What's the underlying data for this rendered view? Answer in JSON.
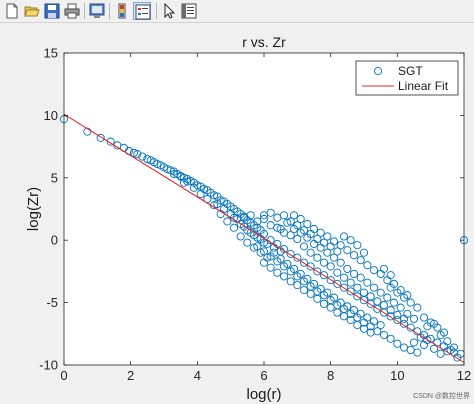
{
  "toolbar": {
    "items": [
      {
        "name": "new-figure-icon"
      },
      {
        "name": "open-file-icon"
      },
      {
        "name": "save-icon"
      },
      {
        "name": "print-icon"
      },
      {
        "name": "print-preview-icon"
      },
      {
        "name": "insert-colorbar-icon"
      },
      {
        "name": "insert-legend-icon"
      },
      {
        "name": "edit-plot-icon"
      },
      {
        "name": "property-editor-icon"
      }
    ]
  },
  "watermark": "CSDN @数控世界",
  "colors": {
    "marker": "#0072bd",
    "fit": "#e8201e",
    "axes": "#262626"
  },
  "chart_data": {
    "type": "scatter",
    "title": "r vs. Zr",
    "xlabel": "log(r)",
    "ylabel": "log(Zr)",
    "xlim": [
      0,
      12
    ],
    "ylim": [
      -10,
      15
    ],
    "xticks": [
      "0",
      "2",
      "4",
      "6",
      "8",
      "10",
      "12"
    ],
    "yticks": [
      "-10",
      "-5",
      "0",
      "5",
      "10",
      "15"
    ],
    "grid": false,
    "legend": {
      "position": "top-right",
      "entries": [
        "SGT",
        "Linear Fit"
      ]
    },
    "series": [
      {
        "name": "SGT",
        "marker": "open-circle",
        "points": [
          [
            0.0,
            9.7
          ],
          [
            0.7,
            8.7
          ],
          [
            1.1,
            8.2
          ],
          [
            1.4,
            7.9
          ],
          [
            1.6,
            7.6
          ],
          [
            1.8,
            7.4
          ],
          [
            1.95,
            7.15
          ],
          [
            2.1,
            7.0
          ],
          [
            2.2,
            6.9
          ],
          [
            2.35,
            6.7
          ],
          [
            2.5,
            6.5
          ],
          [
            2.6,
            6.4
          ],
          [
            2.7,
            6.25
          ],
          [
            2.8,
            6.1
          ],
          [
            2.9,
            6.0
          ],
          [
            3.0,
            5.85
          ],
          [
            3.1,
            5.7
          ],
          [
            3.2,
            5.6
          ],
          [
            3.3,
            5.5
          ],
          [
            3.4,
            5.3
          ],
          [
            3.5,
            5.15
          ],
          [
            3.6,
            5.0
          ],
          [
            3.7,
            4.9
          ],
          [
            3.8,
            4.75
          ],
          [
            3.9,
            4.6
          ],
          [
            3.3,
            5.3
          ],
          [
            3.5,
            5.1
          ],
          [
            3.7,
            4.7
          ],
          [
            4.0,
            4.4
          ],
          [
            4.1,
            4.3
          ],
          [
            4.2,
            4.1
          ],
          [
            4.3,
            4.0
          ],
          [
            4.4,
            3.8
          ],
          [
            4.5,
            3.6
          ],
          [
            4.6,
            3.5
          ],
          [
            4.7,
            3.2
          ],
          [
            4.8,
            3.1
          ],
          [
            4.9,
            2.9
          ],
          [
            5.0,
            2.7
          ],
          [
            5.1,
            2.5
          ],
          [
            5.2,
            2.3
          ],
          [
            5.3,
            2.1
          ],
          [
            5.4,
            1.9
          ],
          [
            5.5,
            1.6
          ],
          [
            5.6,
            1.4
          ],
          [
            5.7,
            1.2
          ],
          [
            5.8,
            1.0
          ],
          [
            5.9,
            0.8
          ],
          [
            6.0,
            0.5
          ],
          [
            4.6,
            2.9
          ],
          [
            4.8,
            2.5
          ],
          [
            5.0,
            2.1
          ],
          [
            5.2,
            1.7
          ],
          [
            5.4,
            1.1
          ],
          [
            5.6,
            0.6
          ],
          [
            5.8,
            0.2
          ],
          [
            6.0,
            -0.2
          ],
          [
            5.1,
            1.0
          ],
          [
            5.3,
            0.3
          ],
          [
            5.5,
            -0.2
          ],
          [
            5.7,
            -0.6
          ],
          [
            5.9,
            -1.0
          ],
          [
            6.1,
            -1.4
          ],
          [
            5.4,
            1.8
          ],
          [
            5.6,
            2.0
          ],
          [
            5.8,
            1.5
          ],
          [
            6.0,
            1.7
          ],
          [
            6.2,
            1.2
          ],
          [
            6.4,
            1.0
          ],
          [
            6.6,
            0.6
          ],
          [
            6.8,
            0.4
          ],
          [
            7.0,
            0.1
          ],
          [
            6.2,
            0.0
          ],
          [
            6.4,
            -0.3
          ],
          [
            6.6,
            -0.7
          ],
          [
            6.8,
            -1.1
          ],
          [
            7.0,
            -1.4
          ],
          [
            7.2,
            -1.8
          ],
          [
            7.4,
            -2.1
          ],
          [
            7.6,
            -2.5
          ],
          [
            7.8,
            -2.8
          ],
          [
            8.0,
            -3.2
          ],
          [
            8.2,
            -3.5
          ],
          [
            8.4,
            -3.8
          ],
          [
            8.6,
            -4.1
          ],
          [
            8.8,
            -4.5
          ],
          [
            9.0,
            -4.8
          ],
          [
            9.2,
            -5.1
          ],
          [
            9.4,
            -5.5
          ],
          [
            9.6,
            -5.8
          ],
          [
            9.8,
            -6.1
          ],
          [
            10.0,
            -6.4
          ],
          [
            10.2,
            -6.7
          ],
          [
            10.4,
            -7.0
          ],
          [
            10.6,
            -7.3
          ],
          [
            10.8,
            -7.6
          ],
          [
            11.0,
            -7.9
          ],
          [
            11.2,
            -8.2
          ],
          [
            11.4,
            -8.5
          ],
          [
            11.6,
            -8.8
          ],
          [
            11.8,
            -9.4
          ],
          [
            11.7,
            -9.0
          ],
          [
            11.5,
            -8.9
          ],
          [
            11.3,
            -9.1
          ],
          [
            11.1,
            -8.7
          ],
          [
            10.9,
            -8.0
          ],
          [
            10.7,
            -7.8
          ],
          [
            10.5,
            -8.2
          ],
          [
            6.5,
            0.9
          ],
          [
            6.7,
            1.4
          ],
          [
            6.9,
            0.9
          ],
          [
            7.1,
            0.6
          ],
          [
            7.3,
            0.2
          ],
          [
            7.5,
            -0.3
          ],
          [
            7.7,
            -0.6
          ],
          [
            7.9,
            -1.0
          ],
          [
            8.1,
            -1.4
          ],
          [
            8.3,
            -1.8
          ],
          [
            8.5,
            -2.3
          ],
          [
            8.7,
            -2.7
          ],
          [
            6.3,
            -1.0
          ],
          [
            6.5,
            -1.5
          ],
          [
            6.7,
            -1.9
          ],
          [
            6.9,
            -2.3
          ],
          [
            7.1,
            -2.7
          ],
          [
            7.3,
            -3.1
          ],
          [
            7.5,
            -3.5
          ],
          [
            7.7,
            -3.9
          ],
          [
            7.9,
            -4.2
          ],
          [
            8.1,
            -4.6
          ],
          [
            8.3,
            -5.0
          ],
          [
            8.5,
            -5.3
          ],
          [
            8.7,
            -5.6
          ],
          [
            8.9,
            -5.9
          ],
          [
            9.1,
            -6.2
          ],
          [
            9.3,
            -6.5
          ],
          [
            9.5,
            -6.8
          ],
          [
            8.9,
            -3.0
          ],
          [
            9.1,
            -3.4
          ],
          [
            9.3,
            -3.8
          ],
          [
            9.5,
            -4.2
          ],
          [
            9.7,
            -4.6
          ],
          [
            9.9,
            -5.0
          ],
          [
            10.1,
            -5.4
          ],
          [
            10.3,
            -5.9
          ],
          [
            10.5,
            -6.3
          ],
          [
            7.2,
            -0.5
          ],
          [
            7.4,
            -1.0
          ],
          [
            7.6,
            -1.4
          ],
          [
            7.8,
            -1.8
          ],
          [
            8.0,
            -2.1
          ],
          [
            8.2,
            -2.6
          ],
          [
            8.4,
            -3.0
          ],
          [
            8.6,
            -3.4
          ],
          [
            8.8,
            -3.8
          ],
          [
            9.0,
            -4.2
          ],
          [
            9.2,
            -4.5
          ],
          [
            9.4,
            -4.9
          ],
          [
            9.6,
            -5.2
          ],
          [
            9.8,
            -5.6
          ],
          [
            10.0,
            -6.0
          ],
          [
            10.2,
            -6.3
          ],
          [
            6.0,
            2.0
          ],
          [
            6.2,
            2.2
          ],
          [
            6.4,
            1.8
          ],
          [
            6.6,
            2.0
          ],
          [
            6.8,
            1.5
          ],
          [
            7.0,
            1.2
          ],
          [
            7.2,
            0.8
          ],
          [
            7.4,
            0.5
          ],
          [
            7.6,
            0.1
          ],
          [
            7.8,
            -0.2
          ],
          [
            8.0,
            -0.5
          ],
          [
            8.2,
            -0.9
          ],
          [
            5.5,
            0.8
          ],
          [
            5.7,
            0.4
          ],
          [
            5.9,
            0.1
          ],
          [
            6.1,
            -0.3
          ],
          [
            6.3,
            -0.6
          ],
          [
            6.5,
            -0.9
          ],
          [
            4.9,
            1.5
          ],
          [
            5.1,
            1.8
          ],
          [
            5.3,
            1.3
          ],
          [
            4.7,
            2.1
          ],
          [
            4.5,
            2.8
          ],
          [
            4.3,
            3.3
          ],
          [
            4.1,
            3.7
          ],
          [
            3.9,
            4.2
          ],
          [
            3.6,
            4.6
          ],
          [
            6.0,
            -1.8
          ],
          [
            6.2,
            -2.2
          ],
          [
            6.4,
            -2.6
          ],
          [
            6.6,
            -2.9
          ],
          [
            6.8,
            -3.3
          ],
          [
            7.0,
            -3.6
          ],
          [
            7.2,
            -4.0
          ],
          [
            7.4,
            -4.3
          ],
          [
            7.6,
            -4.7
          ],
          [
            7.8,
            -5.1
          ],
          [
            8.0,
            -5.4
          ],
          [
            8.2,
            -5.8
          ],
          [
            8.4,
            -6.1
          ],
          [
            8.6,
            -6.4
          ],
          [
            8.8,
            -6.8
          ],
          [
            9.0,
            -7.1
          ],
          [
            9.2,
            -7.4
          ],
          [
            9.8,
            -3.8
          ],
          [
            10.0,
            -4.2
          ],
          [
            10.2,
            -4.6
          ],
          [
            10.4,
            -5.0
          ],
          [
            10.6,
            -5.4
          ],
          [
            10.8,
            -6.2
          ],
          [
            11.0,
            -6.6
          ],
          [
            11.2,
            -7.0
          ],
          [
            11.4,
            -7.4
          ],
          [
            9.6,
            -2.3
          ],
          [
            9.8,
            -2.8
          ],
          [
            9.7,
            -3.2
          ],
          [
            9.9,
            -3.5
          ],
          [
            9.5,
            -2.7
          ],
          [
            10.1,
            -4.0
          ],
          [
            10.3,
            -4.4
          ],
          [
            5.8,
            -0.5
          ],
          [
            6.0,
            -0.9
          ],
          [
            6.2,
            -1.3
          ],
          [
            6.4,
            -1.7
          ],
          [
            6.6,
            -2.1
          ],
          [
            6.8,
            -2.5
          ],
          [
            7.0,
            -2.9
          ],
          [
            7.2,
            -3.3
          ],
          [
            7.4,
            -3.7
          ],
          [
            7.6,
            -4.1
          ],
          [
            7.8,
            -4.4
          ],
          [
            8.0,
            -4.8
          ],
          [
            8.2,
            -5.2
          ],
          [
            8.4,
            -5.5
          ],
          [
            8.6,
            -5.9
          ],
          [
            8.8,
            -6.2
          ],
          [
            9.0,
            -6.6
          ],
          [
            9.2,
            -6.9
          ],
          [
            9.4,
            -7.3
          ],
          [
            9.6,
            -7.6
          ],
          [
            9.8,
            -7.9
          ],
          [
            10.0,
            -8.3
          ],
          [
            10.2,
            -8.6
          ],
          [
            10.4,
            -8.8
          ],
          [
            10.6,
            -9.0
          ],
          [
            10.8,
            -8.4
          ],
          [
            12.0,
            0.0
          ],
          [
            11.1,
            -6.7
          ],
          [
            10.9,
            -6.9
          ],
          [
            11.3,
            -7.6
          ],
          [
            11.5,
            -8.1
          ],
          [
            11.7,
            -8.6
          ],
          [
            11.9,
            -9.1
          ],
          [
            6.9,
            2.0
          ],
          [
            7.1,
            1.7
          ],
          [
            7.3,
            1.3
          ],
          [
            7.5,
            0.9
          ],
          [
            7.7,
            0.6
          ],
          [
            7.9,
            0.3
          ],
          [
            8.1,
            -0.1
          ],
          [
            8.3,
            -0.4
          ],
          [
            8.5,
            -0.8
          ],
          [
            8.7,
            -1.2
          ],
          [
            8.9,
            -1.6
          ],
          [
            9.1,
            -2.0
          ],
          [
            9.3,
            -2.4
          ],
          [
            9.0,
            -1.0
          ],
          [
            8.8,
            -0.4
          ],
          [
            8.6,
            0.0
          ],
          [
            8.4,
            0.3
          ]
        ]
      },
      {
        "name": "Linear Fit",
        "line": [
          [
            0.0,
            10.1
          ],
          [
            12.0,
            -9.8
          ]
        ]
      }
    ]
  }
}
